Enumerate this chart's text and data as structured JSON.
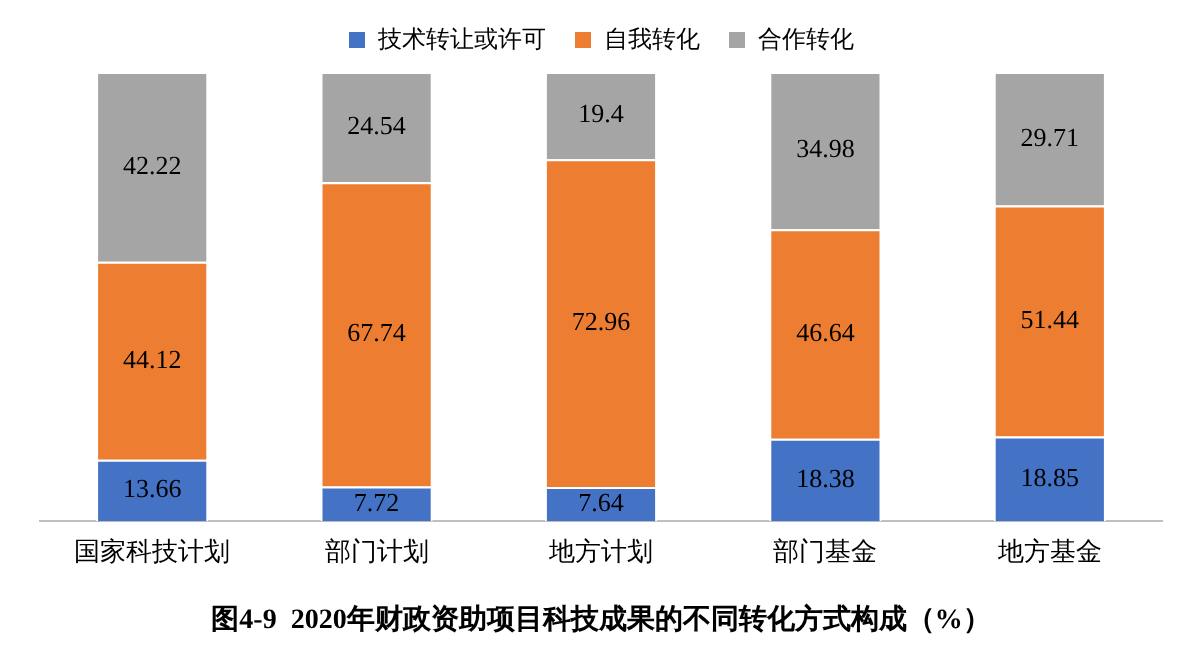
{
  "chart_data": {
    "type": "bar",
    "title": "图4-9  2020年财政资助项目科技成果的不同转化方式构成（%）",
    "categories": [
      "国家科技计划",
      "部门计划",
      "地方计划",
      "部门基金",
      "地方基金"
    ],
    "stacked": true,
    "legend": "top",
    "data_labels": true,
    "grid": false,
    "series": [
      {
        "name": "技术转让或许可",
        "color": "#4472c4",
        "values": [
          13.66,
          7.72,
          7.64,
          18.38,
          18.85
        ]
      },
      {
        "name": "自我转化",
        "color": "#ed7d31",
        "values": [
          44.12,
          67.74,
          72.96,
          46.64,
          51.44
        ]
      },
      {
        "name": "合作转化",
        "color": "#a5a5a5",
        "values": [
          42.22,
          24.54,
          19.4,
          34.98,
          29.71
        ]
      }
    ]
  }
}
